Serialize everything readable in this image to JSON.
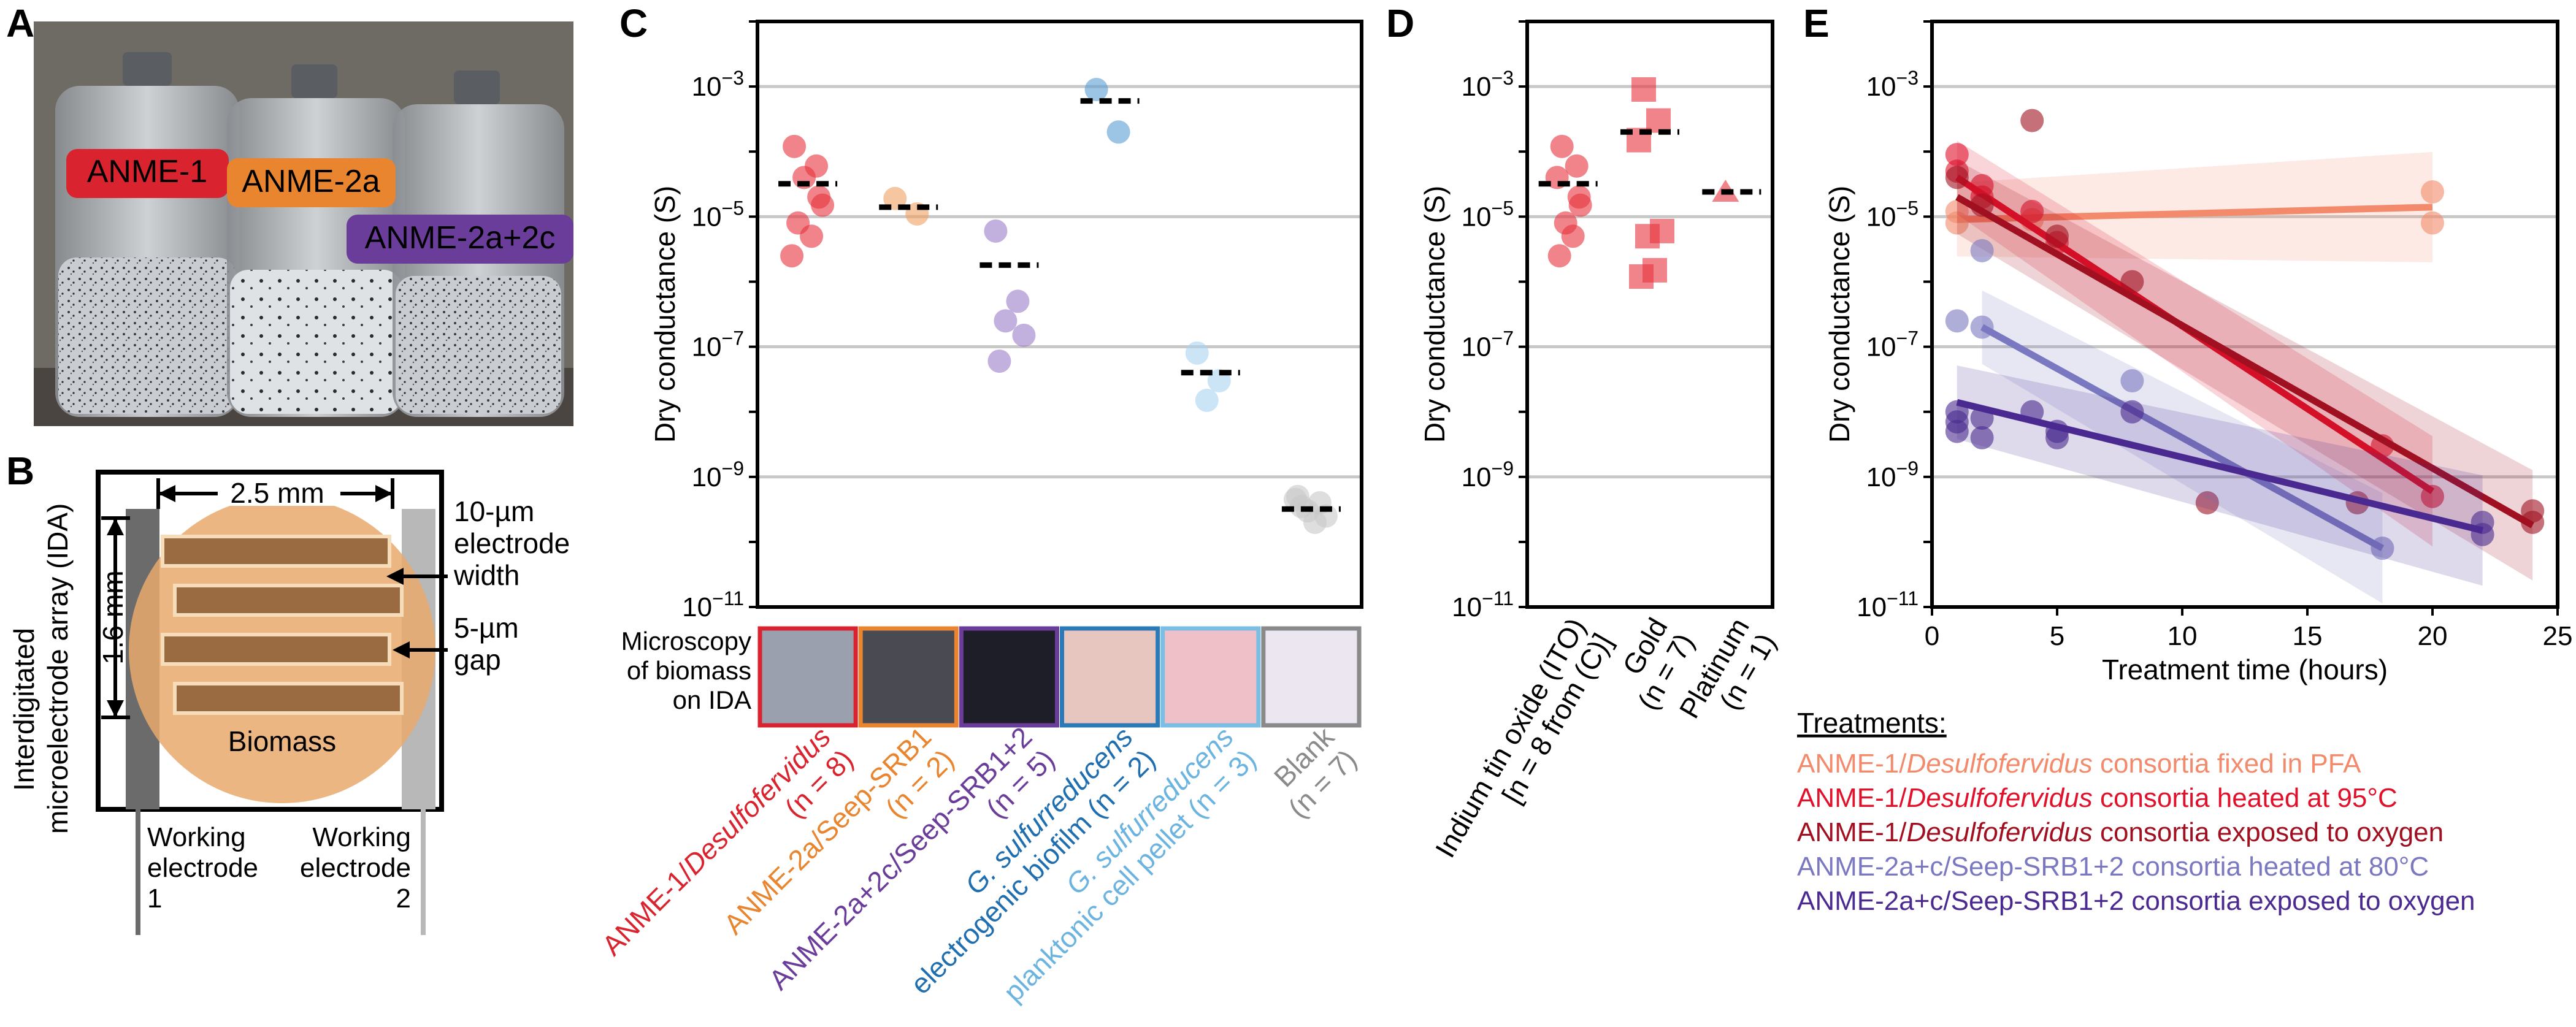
{
  "panels": {
    "A": "A",
    "B": "B",
    "C": "C",
    "D": "D",
    "E": "E"
  },
  "panel_a": {
    "labels": [
      {
        "text": "ANME-1",
        "color": "#d9232e"
      },
      {
        "text": "ANME-2a",
        "color": "#e8852e"
      },
      {
        "text": "ANME-2a+2c",
        "color": "#6a3d9a"
      }
    ]
  },
  "panel_b": {
    "ida_title_1": "Interdigitated",
    "ida_title_2": "microelectrode array (IDA)",
    "width_dim": "2.5 mm",
    "height_dim": "1.6 mm",
    "note_width_1": "10-µm",
    "note_width_2": "electrode",
    "note_width_3": "width",
    "note_gap_1": "5-µm",
    "note_gap_2": "gap",
    "biomass": "Biomass",
    "we1_1": "Working",
    "we1_2": "electrode",
    "we1_3": "1",
    "we2_1": "Working",
    "we2_2": "electrode",
    "we2_3": "2",
    "biomass_color": "#e8a96b"
  },
  "panel_c": {
    "microscopy_label_1": "Microscopy",
    "microscopy_label_2": "of biomass",
    "microscopy_label_3": "on IDA",
    "thumb_colors": [
      "#9aa0ad",
      "#4a4a52",
      "#1e1e28",
      "#e8c6c0",
      "#f0c0c8",
      "#ece6f0"
    ],
    "thumb_borders": [
      "#d9232e",
      "#e8852e",
      "#6a3d9a",
      "#2a7ab8",
      "#7bbde3",
      "#8a8a8a"
    ],
    "category_labels": [
      {
        "line1": "ANME-1/",
        "italic": "Desulfofervidus",
        "line2": "(n = 8)",
        "color": "#d9232e"
      },
      {
        "line1": "ANME-2a/Seep-SRB1",
        "italic": "",
        "line2": "(n = 2)",
        "color": "#e8852e"
      },
      {
        "line1": "ANME-2a+2c/Seep-SRB1+2",
        "italic": "",
        "line2": "(n = 5)",
        "color": "#6a3d9a"
      },
      {
        "line1": "",
        "italic": "G. sulfurreducens",
        "line2": "electrogenic biofilm (n = 2)",
        "color": "#1f6fb0"
      },
      {
        "line1": "",
        "italic": "G. sulfurreducens",
        "line2": "planktonic cell pellet (n = 3)",
        "color": "#6cb4e0"
      },
      {
        "line1": "Blank",
        "italic": "",
        "line2": "(n = 7)",
        "color": "#8a8a8a"
      }
    ]
  },
  "panel_d": {
    "category_labels": [
      {
        "line1": "Indium tin oxide (ITO)",
        "line2": "[n = 8 from (C)]"
      },
      {
        "line1": "Gold",
        "line2": "(n = 7)"
      },
      {
        "line1": "Platinum",
        "line2": "(n = 1)"
      }
    ]
  },
  "legend": {
    "title": "Treatments:",
    "items": [
      {
        "pre": "ANME-1/",
        "italic": "Desulfofervidus",
        "post": " consortia fixed in PFA",
        "color": "#f28a6b"
      },
      {
        "pre": "ANME-1/",
        "italic": "Desulfofervidus",
        "post": " consortia heated at 95°C",
        "color": "#e0112b"
      },
      {
        "pre": "ANME-1/",
        "italic": "Desulfofervidus",
        "post": " consortia exposed to oxygen",
        "color": "#a01020"
      },
      {
        "pre": "ANME-2a+c/Seep-SRB1+2 consortia heated at 80°C",
        "italic": "",
        "post": "",
        "color": "#7a78c0"
      },
      {
        "pre": "ANME-2a+c/Seep-SRB1+2 consortia exposed to oxygen",
        "italic": "",
        "post": "",
        "color": "#4a2a90"
      }
    ]
  },
  "chart_data": [
    {
      "panel": "C",
      "type": "scatter",
      "ylabel": "Dry conductance (S)",
      "yscale": "log",
      "ylim": [
        1e-11,
        0.01
      ],
      "yticks": [
        "10^-11",
        "10^-9",
        "10^-7",
        "10^-5",
        "10^-3"
      ],
      "grid": true,
      "categories": [
        "ANME-1/Desulfofervidus",
        "ANME-2a/Seep-SRB1",
        "ANME-2a+2c/Seep-SRB1+2",
        "G. sulfurreducens electrogenic biofilm",
        "G. sulfurreducens planktonic cell pellet",
        "Blank"
      ],
      "series": [
        {
          "category": 0,
          "color": "#e8323c",
          "points": [
            0.00012,
            6e-05,
            4e-05,
            1.5e-05,
            8e-06,
            5e-06,
            2.5e-06,
            2e-05
          ],
          "mean": 3.2e-05
        },
        {
          "category": 1,
          "color": "#f0a060",
          "points": [
            1.9e-05,
            1.1e-05
          ],
          "mean": 1.4e-05
        },
        {
          "category": 2,
          "color": "#9a7cc8",
          "points": [
            6e-06,
            5e-07,
            2.5e-07,
            1.5e-07,
            6e-08
          ],
          "mean": 1.8e-06
        },
        {
          "category": 3,
          "color": "#5a9fd4",
          "points": [
            0.0009,
            0.0002
          ],
          "mean": 0.0006
        },
        {
          "category": 4,
          "color": "#a8d4f0",
          "points": [
            8e-08,
            3e-08,
            1.5e-08
          ],
          "mean": 4e-08
        },
        {
          "category": 5,
          "color": "#c8c8c8",
          "points": [
            5e-10,
            4e-10,
            3e-10,
            2.5e-10,
            3.5e-10,
            2e-10,
            4.5e-10
          ],
          "mean": 3.2e-10
        }
      ]
    },
    {
      "panel": "D",
      "type": "scatter",
      "ylabel": "Dry conductance (S)",
      "yscale": "log",
      "ylim": [
        1e-11,
        0.01
      ],
      "yticks": [
        "10^-11",
        "10^-9",
        "10^-7",
        "10^-5",
        "10^-3"
      ],
      "grid": true,
      "categories": [
        "Indium tin oxide (ITO)",
        "Gold",
        "Platinum"
      ],
      "series": [
        {
          "category": 0,
          "marker": "circle",
          "color": "#e8323c",
          "points": [
            0.00012,
            6e-05,
            4e-05,
            1.5e-05,
            8e-06,
            5e-06,
            2.5e-06,
            2e-05
          ],
          "mean": 3.2e-05
        },
        {
          "category": 1,
          "marker": "square",
          "color": "#e8323c",
          "points": [
            0.0009,
            0.0003,
            0.00015,
            6e-06,
            5e-06,
            1.5e-06,
            1.2e-06
          ],
          "mean": 0.0002
        },
        {
          "category": 2,
          "marker": "triangle",
          "color": "#e8323c",
          "points": [
            2.4e-05
          ],
          "mean": 2.4e-05
        }
      ]
    },
    {
      "panel": "E",
      "type": "scatter",
      "xlabel": "Treatment time (hours)",
      "ylabel": "Dry conductance (S)",
      "yscale": "log",
      "xlim": [
        0,
        25
      ],
      "ylim": [
        1e-11,
        0.01
      ],
      "xticks": [
        0,
        5,
        10,
        15,
        20,
        25
      ],
      "yticks": [
        "10^-11",
        "10^-9",
        "10^-7",
        "10^-5",
        "10^-3"
      ],
      "grid": true,
      "series": [
        {
          "name": "ANME-1/Desulfofervidus consortia fixed in PFA",
          "color": "#f28a6b",
          "x": [
            1,
            1,
            4,
            20,
            20
          ],
          "y": [
            1.2e-05,
            8e-06,
            9e-06,
            2.4e-05,
            8e-06
          ],
          "fit": [
            [
              1,
              9e-06
            ],
            [
              20,
              1.4e-05
            ]
          ]
        },
        {
          "name": "ANME-1/Desulfofervidus consortia heated at 95°C",
          "color": "#e0112b",
          "x": [
            1,
            1,
            2,
            2,
            4,
            5,
            18,
            20
          ],
          "y": [
            9e-05,
            5e-05,
            3e-05,
            2e-05,
            1.2e-05,
            4e-06,
            3e-09,
            5e-10
          ],
          "fit": [
            [
              1,
              4e-05
            ],
            [
              20,
              6e-10
            ]
          ]
        },
        {
          "name": "ANME-1/Desulfofervidus consortia exposed to oxygen",
          "color": "#a01020",
          "x": [
            1,
            2,
            4,
            5,
            8,
            11,
            17,
            24,
            24
          ],
          "y": [
            4e-05,
            1.5e-05,
            0.0003,
            5e-06,
            1e-06,
            4e-10,
            4e-10,
            3e-10,
            2e-10
          ],
          "fit": [
            [
              1,
              2e-05
            ],
            [
              24,
              1.8e-10
            ]
          ]
        },
        {
          "name": "ANME-2a+c/Seep-SRB1+2 consortia heated at 80°C",
          "color": "#7a78c0",
          "x": [
            1,
            2,
            2,
            8,
            18
          ],
          "y": [
            2.5e-07,
            3e-06,
            2e-07,
            3e-08,
            8e-11
          ],
          "fit": [
            [
              2,
              2e-07
            ],
            [
              18,
              8e-11
            ]
          ]
        },
        {
          "name": "ANME-2a+c/Seep-SRB1+2 consortia exposed to oxygen",
          "color": "#4a2a90",
          "x": [
            1,
            1,
            1,
            2,
            2,
            4,
            5,
            5,
            8,
            22,
            22
          ],
          "y": [
            1e-08,
            7e-09,
            5e-09,
            8e-09,
            4e-09,
            1e-08,
            5e-09,
            4e-09,
            1e-08,
            2e-10,
            1.3e-10
          ],
          "fit": [
            [
              1,
              1.4e-08
            ],
            [
              22,
              1.5e-10
            ]
          ]
        }
      ]
    }
  ]
}
